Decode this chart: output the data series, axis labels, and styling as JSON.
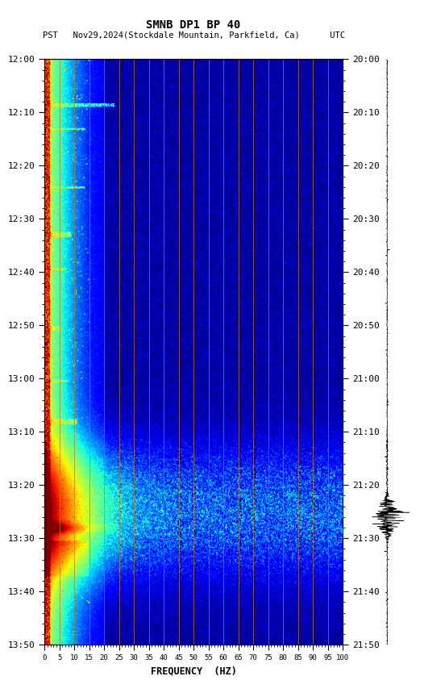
{
  "title_line1": "SMNB DP1 BP 40",
  "title_line2": "PST   Nov29,2024(Stockdale Mountain, Parkfield, Ca)      UTC",
  "xlabel": "FREQUENCY  (HZ)",
  "freq_ticks": [
    0,
    5,
    10,
    15,
    20,
    25,
    30,
    35,
    40,
    45,
    50,
    55,
    60,
    65,
    70,
    75,
    80,
    85,
    90,
    95,
    100
  ],
  "left_time_labels": [
    "12:00",
    "12:10",
    "12:20",
    "12:30",
    "12:40",
    "12:50",
    "13:00",
    "13:10",
    "13:20",
    "13:30",
    "13:40",
    "13:50"
  ],
  "right_time_labels": [
    "20:00",
    "20:10",
    "20:20",
    "20:30",
    "20:40",
    "20:50",
    "21:00",
    "21:10",
    "21:20",
    "21:30",
    "21:40",
    "21:50"
  ],
  "time_tick_minutes": [
    0,
    10,
    20,
    30,
    40,
    50,
    60,
    70,
    80,
    90,
    100,
    110
  ],
  "grid_color": "#cc7700",
  "vertical_grid_freqs": [
    5,
    10,
    15,
    20,
    25,
    30,
    35,
    40,
    45,
    50,
    55,
    60,
    65,
    70,
    75,
    80,
    85,
    90,
    95
  ]
}
